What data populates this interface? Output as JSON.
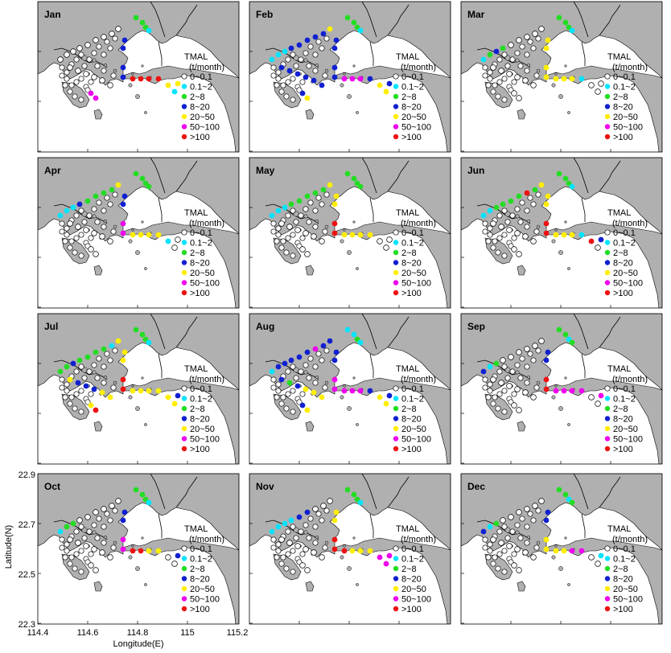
{
  "colors": {
    "land": "#b0b0b0",
    "water": "#ffffff",
    "none": "#ffffff",
    "cyan": "#00e5ff",
    "green": "#22dd22",
    "blue": "#1020d0",
    "yellow": "#ffee00",
    "magenta": "#ee00ee",
    "red": "#ee1111"
  },
  "legend": {
    "title_line1": "TMAL",
    "title_line2": "(t/month)",
    "entries": [
      {
        "label": "0~0.1",
        "color": "none"
      },
      {
        "label": "0.1~2",
        "color": "cyan"
      },
      {
        "label": "2~8",
        "color": "green"
      },
      {
        "label": "8~20",
        "color": "blue"
      },
      {
        "label": "20~50",
        "color": "yellow"
      },
      {
        "label": "50~100",
        "color": "magenta"
      },
      {
        "label": ">100",
        "color": "red"
      }
    ]
  },
  "axes": {
    "xlabel": "Longitude(E)",
    "ylabel": "Latitude(N)",
    "xticks": [
      "114.4",
      "114.6",
      "114.8",
      "115",
      "115.2"
    ],
    "yticks": [
      "22.9",
      "22.7",
      "22.5",
      "22.3"
    ],
    "xlim": [
      114.4,
      115.2
    ],
    "ylim": [
      22.3,
      22.9
    ]
  },
  "months": [
    {
      "name": "Jan",
      "stations": [
        "none",
        "none",
        "none",
        "none",
        "none",
        "none",
        "none",
        "none",
        "none",
        "none",
        "none",
        "none",
        "none",
        "none",
        "none",
        "green",
        "green",
        "green",
        "cyan",
        "blue",
        "blue",
        "blue",
        "blue",
        "red",
        "red",
        "red",
        "red",
        "yellow",
        "cyan",
        "yellow",
        "magenta",
        "magenta"
      ]
    },
    {
      "name": "Feb",
      "stations": [
        "cyan",
        "cyan",
        "cyan",
        "blue",
        "blue",
        "blue",
        "blue",
        "blue",
        "yellow",
        "blue",
        "blue",
        "blue",
        "blue",
        "blue",
        "blue",
        "green",
        "green",
        "green",
        "cyan",
        "blue",
        "blue",
        "blue",
        "blue",
        "magenta",
        "magenta",
        "magenta",
        "blue",
        "yellow",
        "yellow",
        "blue",
        "blue",
        "yellow"
      ]
    },
    {
      "name": "Mar",
      "stations": [
        "cyan",
        "green",
        "blue",
        "green",
        "none",
        "none",
        "none",
        "none",
        "none",
        "none",
        "none",
        "none",
        "none",
        "none",
        "none",
        "green",
        "green",
        "green",
        "cyan",
        "yellow",
        "yellow",
        "yellow",
        "yellow",
        "yellow",
        "yellow",
        "yellow",
        "cyan",
        "none",
        "none",
        "none",
        "none",
        "none"
      ]
    },
    {
      "name": "Apr",
      "stations": [
        "cyan",
        "cyan",
        "cyan",
        "blue",
        "green",
        "green",
        "green",
        "green",
        "yellow",
        "none",
        "none",
        "none",
        "none",
        "none",
        "none",
        "green",
        "green",
        "green",
        "green",
        "blue",
        "blue",
        "magenta",
        "magenta",
        "yellow",
        "yellow",
        "yellow",
        "yellow",
        "cyan",
        "none",
        "none",
        "none",
        "none"
      ]
    },
    {
      "name": "May",
      "stations": [
        "cyan",
        "cyan",
        "cyan",
        "green",
        "green",
        "green",
        "green",
        "green",
        "yellow",
        "none",
        "none",
        "none",
        "none",
        "none",
        "none",
        "green",
        "green",
        "green",
        "green",
        "yellow",
        "yellow",
        "red",
        "red",
        "yellow",
        "yellow",
        "yellow",
        "yellow",
        "none",
        "none",
        "none",
        "none",
        "none"
      ]
    },
    {
      "name": "Jun",
      "stations": [
        "cyan",
        "cyan",
        "green",
        "green",
        "green",
        "green",
        "red",
        "green",
        "yellow",
        "none",
        "none",
        "none",
        "none",
        "none",
        "none",
        "green",
        "green",
        "green",
        "cyan",
        "yellow",
        "yellow",
        "red",
        "red",
        "yellow",
        "yellow",
        "yellow",
        "cyan",
        "red",
        "none",
        "blue",
        "none",
        "none"
      ]
    },
    {
      "name": "Jul",
      "stations": [
        "green",
        "green",
        "blue",
        "green",
        "green",
        "green",
        "green",
        "cyan",
        "yellow",
        "yellow",
        "blue",
        "blue",
        "blue",
        "yellow",
        "yellow",
        "green",
        "green",
        "green",
        "cyan",
        "yellow",
        "yellow",
        "red",
        "red",
        "yellow",
        "yellow",
        "yellow",
        "yellow",
        "yellow",
        "yellow",
        "blue",
        "yellow",
        "red"
      ]
    },
    {
      "name": "Aug",
      "stations": [
        "cyan",
        "blue",
        "blue",
        "blue",
        "blue",
        "blue",
        "magenta",
        "blue",
        "blue",
        "blue",
        "green",
        "blue",
        "yellow",
        "yellow",
        "yellow",
        "cyan",
        "cyan",
        "green",
        "cyan",
        "blue",
        "blue",
        "magenta",
        "magenta",
        "magenta",
        "magenta",
        "magenta",
        "blue",
        "yellow",
        "yellow",
        "blue",
        "blue",
        "yellow"
      ]
    },
    {
      "name": "Sep",
      "stations": [
        "blue",
        "cyan",
        "green",
        "none",
        "none",
        "none",
        "none",
        "none",
        "none",
        "none",
        "none",
        "none",
        "none",
        "none",
        "none",
        "green",
        "green",
        "cyan",
        "green",
        "blue",
        "blue",
        "red",
        "red",
        "magenta",
        "magenta",
        "magenta",
        "magenta",
        "none",
        "none",
        "magenta",
        "none",
        "none"
      ]
    },
    {
      "name": "Oct",
      "stations": [
        "cyan",
        "green",
        "green",
        "none",
        "none",
        "none",
        "none",
        "none",
        "none",
        "none",
        "none",
        "none",
        "none",
        "none",
        "none",
        "green",
        "green",
        "green",
        "cyan",
        "blue",
        "blue",
        "magenta",
        "magenta",
        "red",
        "red",
        "yellow",
        "yellow",
        "none",
        "none",
        "blue",
        "none",
        "none"
      ]
    },
    {
      "name": "Nov",
      "stations": [
        "cyan",
        "cyan",
        "cyan",
        "cyan",
        "blue",
        "blue",
        "none",
        "none",
        "none",
        "none",
        "none",
        "none",
        "none",
        "none",
        "none",
        "green",
        "green",
        "green",
        "cyan",
        "yellow",
        "yellow",
        "red",
        "red",
        "red",
        "yellow",
        "yellow",
        "yellow",
        "magenta",
        "magenta",
        "magenta",
        "none",
        "none"
      ]
    },
    {
      "name": "Dec",
      "stations": [
        "blue",
        "cyan",
        "green",
        "none",
        "none",
        "none",
        "none",
        "none",
        "none",
        "none",
        "none",
        "none",
        "none",
        "none",
        "none",
        "green",
        "green",
        "cyan",
        "green",
        "blue",
        "blue",
        "yellow",
        "yellow",
        "yellow",
        "yellow",
        "magenta",
        "magenta",
        "none",
        "none",
        "cyan",
        "none",
        "none"
      ]
    }
  ]
}
